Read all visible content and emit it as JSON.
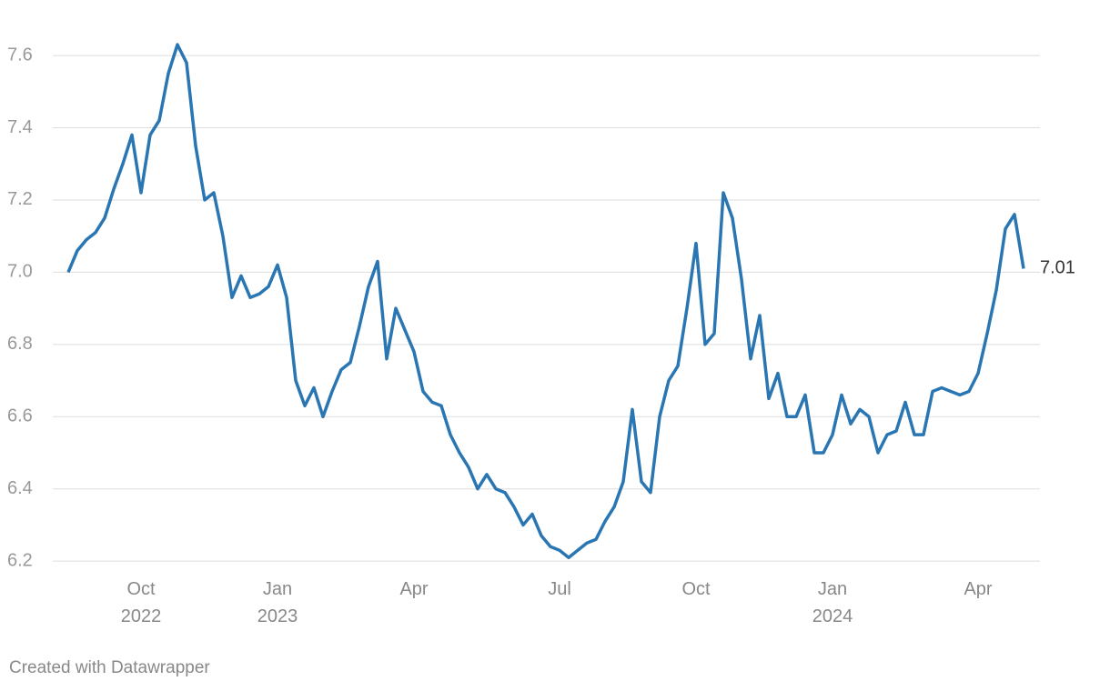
{
  "chart_data": {
    "type": "line",
    "x": [
      "2022-08",
      "2022-08",
      "2022-08",
      "2022-09",
      "2022-09",
      "2022-09",
      "2022-09",
      "2022-09",
      "2022-10",
      "2022-10",
      "2022-10",
      "2022-10",
      "2022-10",
      "2022-11",
      "2022-11",
      "2022-11",
      "2022-11",
      "2022-11",
      "2022-12",
      "2022-12",
      "2022-12",
      "2022-12",
      "2022-12",
      "2023-01",
      "2023-01",
      "2023-01",
      "2023-01",
      "2023-01",
      "2023-02",
      "2023-02",
      "2023-02",
      "2023-02",
      "2023-02",
      "2023-03",
      "2023-03",
      "2023-03",
      "2023-03",
      "2023-03",
      "2023-04",
      "2023-04",
      "2023-04",
      "2023-04",
      "2023-04",
      "2023-05",
      "2023-05",
      "2023-05",
      "2023-05",
      "2023-05",
      "2023-05",
      "2023-06",
      "2023-06",
      "2023-06",
      "2023-06",
      "2023-06",
      "2023-07",
      "2023-07",
      "2023-07",
      "2023-07",
      "2023-07",
      "2023-08",
      "2023-08",
      "2023-08",
      "2023-08",
      "2023-08",
      "2023-09",
      "2023-09",
      "2023-09",
      "2023-09",
      "2023-09",
      "2023-10",
      "2023-10",
      "2023-10",
      "2023-10",
      "2023-10",
      "2023-11",
      "2023-11",
      "2023-11",
      "2023-11",
      "2023-11",
      "2023-12",
      "2023-12",
      "2023-12",
      "2023-12",
      "2023-12",
      "2024-01",
      "2024-01",
      "2024-01",
      "2024-01",
      "2024-01",
      "2024-02",
      "2024-02",
      "2024-02",
      "2024-02",
      "2024-02",
      "2024-03",
      "2024-03",
      "2024-03",
      "2024-03",
      "2024-03",
      "2024-03",
      "2024-04",
      "2024-04",
      "2024-04",
      "2024-04",
      "2024-04",
      "2024-05"
    ],
    "values": [
      7.0,
      7.06,
      7.09,
      7.11,
      7.15,
      7.23,
      7.3,
      7.38,
      7.22,
      7.38,
      7.42,
      7.55,
      7.63,
      7.58,
      7.35,
      7.2,
      7.22,
      7.1,
      6.93,
      6.99,
      6.93,
      6.94,
      6.96,
      7.02,
      6.93,
      6.7,
      6.63,
      6.68,
      6.6,
      6.67,
      6.73,
      6.75,
      6.85,
      6.96,
      7.03,
      6.76,
      6.9,
      6.84,
      6.78,
      6.67,
      6.64,
      6.63,
      6.55,
      6.5,
      6.46,
      6.4,
      6.44,
      6.4,
      6.39,
      6.35,
      6.3,
      6.33,
      6.27,
      6.24,
      6.23,
      6.21,
      6.23,
      6.25,
      6.26,
      6.31,
      6.35,
      6.42,
      6.62,
      6.42,
      6.39,
      6.6,
      6.7,
      6.74,
      6.9,
      7.08,
      6.8,
      6.83,
      7.22,
      7.15,
      6.98,
      6.76,
      6.88,
      6.65,
      6.72,
      6.6,
      6.6,
      6.66,
      6.5,
      6.5,
      6.55,
      6.66,
      6.58,
      6.62,
      6.6,
      6.5,
      6.55,
      6.56,
      6.64,
      6.55,
      6.55,
      6.67,
      6.68,
      6.67,
      6.66,
      6.67,
      6.72,
      6.83,
      6.95,
      7.12,
      7.16,
      7.01
    ],
    "color": "#2a76b2",
    "ylim": [
      6.15,
      7.72
    ],
    "yticks": [
      6.2,
      6.4,
      6.6,
      6.8,
      {
        "value": 7,
        "label": "7.0"
      },
      7.2,
      7.4,
      7.6
    ],
    "xticks": [
      {
        "value": "2022-10",
        "label": "Oct 2022"
      },
      {
        "value": "2023-01",
        "label": "Jan 2023"
      },
      {
        "value": "2023-04",
        "label": "Apr"
      },
      {
        "value": "2023-07",
        "label": "Jul"
      },
      {
        "value": "2023-10",
        "label": "Oct"
      },
      {
        "value": "2024-01",
        "label": "Jan 2024"
      },
      {
        "value": "2024-04",
        "label": "Apr"
      }
    ],
    "grid": true,
    "credit": "Created with Datawrapper"
  }
}
